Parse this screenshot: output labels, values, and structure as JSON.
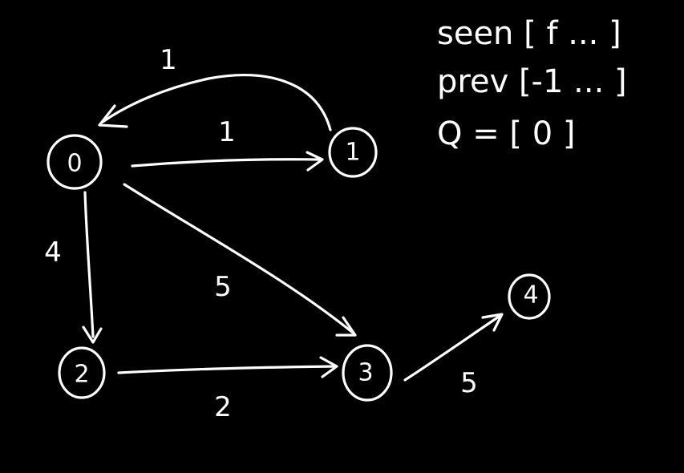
{
  "graph": {
    "nodes": [
      {
        "id": "0",
        "label": "0"
      },
      {
        "id": "1",
        "label": "1"
      },
      {
        "id": "2",
        "label": "2"
      },
      {
        "id": "3",
        "label": "3"
      },
      {
        "id": "4",
        "label": "4"
      }
    ],
    "edges": [
      {
        "from": "1",
        "to": "0",
        "weight": "1"
      },
      {
        "from": "0",
        "to": "1",
        "weight": "1"
      },
      {
        "from": "0",
        "to": "2",
        "weight": "4"
      },
      {
        "from": "0",
        "to": "3",
        "weight": "5"
      },
      {
        "from": "2",
        "to": "3",
        "weight": "2"
      },
      {
        "from": "3",
        "to": "4",
        "weight": "5"
      }
    ]
  },
  "notes": {
    "seen": "seen [ f ... ]",
    "prev": "prev [-1 ... ]",
    "queue": "Q = [ 0 ]"
  },
  "colors": {
    "background": "#000000",
    "ink": "#ffffff"
  }
}
